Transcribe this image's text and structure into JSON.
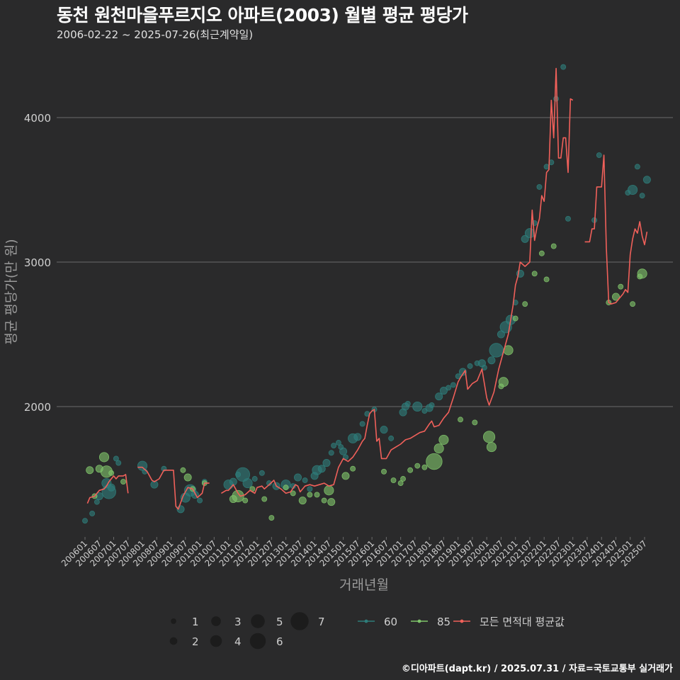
{
  "title": "동천 원천마을푸르지오 아파트(2003) 월별 평균 평당가",
  "subtitle": "2006-02-22 ~ 2025-07-26(최근계약일)",
  "credit": "©디아파트(dapt.kr) / 2025.07.31 / 자료=국토교통부 실거래가",
  "colors": {
    "background": "#2a2a2b",
    "grid": "#6b6b6b",
    "axis_text": "#cfcfcf",
    "axis_title": "#9a9a9a",
    "series_60": "#2e7d7a",
    "series_85": "#7fc46a",
    "avg_line": "#f0605a"
  },
  "chart_data": {
    "type": "scatter",
    "xlabel": "거래년월",
    "ylabel": "평균 평당가(만 원)",
    "ylim": [
      1000,
      4500
    ],
    "yticks": [
      2000,
      3000,
      4000
    ],
    "grid": true,
    "x_tick_labels": [
      "200601",
      "200607",
      "200701",
      "200707",
      "200801",
      "200807",
      "200901",
      "200907",
      "201001",
      "201007",
      "201101",
      "201107",
      "201201",
      "201207",
      "201301",
      "201307",
      "201401",
      "201407",
      "201501",
      "201507",
      "201601",
      "201607",
      "201701",
      "201707",
      "201801",
      "201807",
      "201901",
      "201907",
      "202001",
      "202007",
      "202101",
      "202107",
      "202201",
      "202207",
      "202301",
      "202307",
      "202401",
      "202407",
      "202501",
      "202507"
    ],
    "size_legend": {
      "title": "",
      "items": [
        {
          "label": "1",
          "value": 1
        },
        {
          "label": "2",
          "value": 2
        },
        {
          "label": "3",
          "value": 3
        },
        {
          "label": "4",
          "value": 4
        },
        {
          "label": "5",
          "value": 5
        },
        {
          "label": "6",
          "value": 6
        },
        {
          "label": "7",
          "value": 7
        }
      ]
    },
    "color_legend": [
      {
        "label": "60",
        "key": "series_60"
      },
      {
        "label": "85",
        "key": "series_85"
      },
      {
        "label": "모든 면적대 평균값",
        "key": "avg_line"
      }
    ],
    "avg_line": [
      [
        "2006-02",
        1330
      ],
      [
        "2006-03",
        1370
      ],
      [
        "2006-05",
        1380
      ],
      [
        "2006-07",
        1420
      ],
      [
        "2006-09",
        1430
      ],
      [
        "2006-10",
        1450
      ],
      [
        "2006-11",
        1480
      ],
      [
        "2006-12",
        1500
      ],
      [
        "2007-01",
        1520
      ],
      [
        "2007-02",
        1500
      ],
      [
        "2007-03",
        1520
      ],
      [
        "2007-04",
        1520
      ],
      [
        "2007-05",
        1520
      ],
      [
        "2007-06",
        1530
      ],
      [
        "2007-07",
        1400
      ],
      [
        "2007-11",
        1580
      ],
      [
        "2008-01",
        1580
      ],
      [
        "2008-03",
        1550
      ],
      [
        "2008-05",
        1490
      ],
      [
        "2008-06",
        1480
      ],
      [
        "2008-08",
        1500
      ],
      [
        "2008-10",
        1560
      ],
      [
        "2008-12",
        1560
      ],
      [
        "2009-02",
        1560
      ],
      [
        "2009-03",
        1310
      ],
      [
        "2009-04",
        1290
      ],
      [
        "2009-06",
        1380
      ],
      [
        "2009-08",
        1440
      ],
      [
        "2009-10",
        1430
      ],
      [
        "2009-11",
        1400
      ],
      [
        "2009-12",
        1370
      ],
      [
        "2010-02",
        1400
      ],
      [
        "2010-03",
        1470
      ],
      [
        "2010-05",
        1470
      ],
      [
        "2010-10",
        1400
      ],
      [
        "2010-12",
        1420
      ],
      [
        "2011-01",
        1420
      ],
      [
        "2011-03",
        1460
      ],
      [
        "2011-05",
        1400
      ],
      [
        "2011-06",
        1380
      ],
      [
        "2011-08",
        1390
      ],
      [
        "2011-10",
        1420
      ],
      [
        "2011-12",
        1400
      ],
      [
        "2012-01",
        1440
      ],
      [
        "2012-03",
        1450
      ],
      [
        "2012-04",
        1430
      ],
      [
        "2012-06",
        1460
      ],
      [
        "2012-08",
        1490
      ],
      [
        "2012-09",
        1450
      ],
      [
        "2012-11",
        1430
      ],
      [
        "2013-01",
        1400
      ],
      [
        "2013-03",
        1410
      ],
      [
        "2013-05",
        1460
      ],
      [
        "2013-06",
        1450
      ],
      [
        "2013-07",
        1410
      ],
      [
        "2013-09",
        1450
      ],
      [
        "2013-11",
        1460
      ],
      [
        "2014-01",
        1450
      ],
      [
        "2014-03",
        1460
      ],
      [
        "2014-05",
        1470
      ],
      [
        "2014-07",
        1450
      ],
      [
        "2014-09",
        1460
      ],
      [
        "2014-11",
        1580
      ],
      [
        "2015-01",
        1640
      ],
      [
        "2015-03",
        1620
      ],
      [
        "2015-05",
        1650
      ],
      [
        "2015-07",
        1700
      ],
      [
        "2015-09",
        1760
      ],
      [
        "2015-10",
        1780
      ],
      [
        "2015-11",
        1870
      ],
      [
        "2015-12",
        1950
      ],
      [
        "2016-01",
        1970
      ],
      [
        "2016-02",
        1980
      ],
      [
        "2016-03",
        1760
      ],
      [
        "2016-04",
        1780
      ],
      [
        "2016-05",
        1640
      ],
      [
        "2016-07",
        1640
      ],
      [
        "2016-09",
        1700
      ],
      [
        "2016-11",
        1720
      ],
      [
        "2017-01",
        1740
      ],
      [
        "2017-03",
        1770
      ],
      [
        "2017-05",
        1780
      ],
      [
        "2017-07",
        1800
      ],
      [
        "2017-09",
        1820
      ],
      [
        "2017-11",
        1830
      ],
      [
        "2018-01",
        1880
      ],
      [
        "2018-02",
        1900
      ],
      [
        "2018-03",
        1860
      ],
      [
        "2018-05",
        1870
      ],
      [
        "2018-07",
        1920
      ],
      [
        "2018-09",
        1960
      ],
      [
        "2018-11",
        2060
      ],
      [
        "2019-01",
        2170
      ],
      [
        "2019-02",
        2200
      ],
      [
        "2019-04",
        2250
      ],
      [
        "2019-05",
        2120
      ],
      [
        "2019-07",
        2160
      ],
      [
        "2019-09",
        2180
      ],
      [
        "2019-11",
        2260
      ],
      [
        "2020-01",
        2060
      ],
      [
        "2020-02",
        2010
      ],
      [
        "2020-04",
        2100
      ],
      [
        "2020-06",
        2260
      ],
      [
        "2020-08",
        2380
      ],
      [
        "2020-10",
        2500
      ],
      [
        "2020-12",
        2700
      ],
      [
        "2021-01",
        2840
      ],
      [
        "2021-02",
        2900
      ],
      [
        "2021-03",
        3000
      ],
      [
        "2021-05",
        2970
      ],
      [
        "2021-07",
        3000
      ],
      [
        "2021-08",
        3360
      ],
      [
        "2021-09",
        3150
      ],
      [
        "2021-10",
        3240
      ],
      [
        "2021-11",
        3300
      ],
      [
        "2021-12",
        3460
      ],
      [
        "2022-01",
        3420
      ],
      [
        "2022-02",
        3620
      ],
      [
        "2022-03",
        3640
      ],
      [
        "2022-04",
        4120
      ],
      [
        "2022-05",
        3860
      ],
      [
        "2022-06",
        4340
      ],
      [
        "2022-07",
        3720
      ],
      [
        "2022-08",
        3720
      ],
      [
        "2022-09",
        3860
      ],
      [
        "2022-10",
        3860
      ],
      [
        "2022-11",
        3620
      ],
      [
        "2022-12",
        4130
      ],
      [
        "2023-01",
        4120
      ],
      [
        "2023-06",
        3140
      ],
      [
        "2023-08",
        3140
      ],
      [
        "2023-09",
        3230
      ],
      [
        "2023-10",
        3230
      ],
      [
        "2023-11",
        3520
      ],
      [
        "2023-12",
        3520
      ],
      [
        "2024-01",
        3520
      ],
      [
        "2024-02",
        3740
      ],
      [
        "2024-03",
        3100
      ],
      [
        "2024-04",
        2720
      ],
      [
        "2024-05",
        2710
      ],
      [
        "2024-07",
        2720
      ],
      [
        "2024-09",
        2760
      ],
      [
        "2024-10",
        2780
      ],
      [
        "2024-11",
        2810
      ],
      [
        "2024-12",
        2790
      ],
      [
        "2025-01",
        3050
      ],
      [
        "2025-02",
        3160
      ],
      [
        "2025-03",
        3230
      ],
      [
        "2025-04",
        3200
      ],
      [
        "2025-05",
        3280
      ],
      [
        "2025-06",
        3180
      ],
      [
        "2025-07",
        3120
      ],
      [
        "2025-08",
        3210
      ]
    ],
    "series_60": [
      [
        "2006-01",
        1210,
        1
      ],
      [
        "2006-04",
        1260,
        1
      ],
      [
        "2006-06",
        1340,
        1
      ],
      [
        "2006-07",
        1380,
        2
      ],
      [
        "2006-10",
        1470,
        3
      ],
      [
        "2006-11",
        1410,
        5
      ],
      [
        "2006-12",
        1440,
        2
      ],
      [
        "2007-02",
        1640,
        1
      ],
      [
        "2007-03",
        1610,
        1
      ],
      [
        "2008-01",
        1590,
        3
      ],
      [
        "2008-02",
        1550,
        1
      ],
      [
        "2008-06",
        1460,
        2
      ],
      [
        "2008-10",
        1570,
        1
      ],
      [
        "2009-05",
        1290,
        2
      ],
      [
        "2009-07",
        1370,
        3
      ],
      [
        "2009-09",
        1420,
        4
      ],
      [
        "2009-11",
        1390,
        2
      ],
      [
        "2010-01",
        1350,
        1
      ],
      [
        "2010-03",
        1480,
        1
      ],
      [
        "2011-01",
        1460,
        3
      ],
      [
        "2011-03",
        1480,
        2
      ],
      [
        "2011-05",
        1530,
        1
      ],
      [
        "2011-07",
        1530,
        5
      ],
      [
        "2011-09",
        1470,
        3
      ],
      [
        "2011-12",
        1500,
        1
      ],
      [
        "2012-03",
        1540,
        1
      ],
      [
        "2012-06",
        1470,
        1
      ],
      [
        "2012-09",
        1450,
        2
      ],
      [
        "2013-01",
        1460,
        3
      ],
      [
        "2013-04",
        1450,
        1
      ],
      [
        "2013-06",
        1510,
        2
      ],
      [
        "2013-09",
        1490,
        1
      ],
      [
        "2013-11",
        1430,
        1
      ],
      [
        "2014-01",
        1520,
        2
      ],
      [
        "2014-02",
        1560,
        3
      ],
      [
        "2014-04",
        1570,
        2
      ],
      [
        "2014-06",
        1610,
        2
      ],
      [
        "2014-08",
        1680,
        1
      ],
      [
        "2014-09",
        1730,
        1
      ],
      [
        "2014-11",
        1750,
        1
      ],
      [
        "2014-12",
        1720,
        1
      ],
      [
        "2015-01",
        1690,
        2
      ],
      [
        "2015-02",
        1650,
        1
      ],
      [
        "2015-05",
        1780,
        3
      ],
      [
        "2015-07",
        1790,
        2
      ],
      [
        "2015-09",
        1880,
        1
      ],
      [
        "2015-11",
        1950,
        1
      ],
      [
        "2016-02",
        1980,
        1
      ],
      [
        "2016-06",
        1840,
        2
      ],
      [
        "2016-09",
        1780,
        1
      ],
      [
        "2017-02",
        1960,
        2
      ],
      [
        "2017-03",
        2000,
        2
      ],
      [
        "2017-04",
        2020,
        1
      ],
      [
        "2017-08",
        2000,
        3
      ],
      [
        "2017-11",
        1970,
        1
      ],
      [
        "2018-01",
        1990,
        2
      ],
      [
        "2018-02",
        2010,
        1
      ],
      [
        "2018-05",
        2070,
        2
      ],
      [
        "2018-07",
        2110,
        2
      ],
      [
        "2018-09",
        2130,
        1
      ],
      [
        "2018-11",
        2150,
        1
      ],
      [
        "2019-01",
        2210,
        1
      ],
      [
        "2019-03",
        2240,
        2
      ],
      [
        "2019-06",
        2280,
        1
      ],
      [
        "2019-09",
        2300,
        1
      ],
      [
        "2019-11",
        2300,
        2
      ],
      [
        "2019-12",
        2270,
        1
      ],
      [
        "2020-03",
        2320,
        2
      ],
      [
        "2020-05",
        2390,
        5
      ],
      [
        "2020-07",
        2500,
        2
      ],
      [
        "2020-09",
        2550,
        4
      ],
      [
        "2020-11",
        2600,
        3
      ],
      [
        "2021-01",
        2720,
        1
      ],
      [
        "2021-03",
        2920,
        2
      ],
      [
        "2021-05",
        3160,
        2
      ],
      [
        "2021-07",
        3200,
        3
      ],
      [
        "2021-09",
        3270,
        1
      ],
      [
        "2021-11",
        3520,
        1
      ],
      [
        "2022-02",
        3660,
        1
      ],
      [
        "2022-04",
        3690,
        1
      ],
      [
        "2022-06",
        4130,
        1
      ],
      [
        "2022-09",
        4350,
        1
      ],
      [
        "2022-11",
        3300,
        1
      ],
      [
        "2023-10",
        3290,
        1
      ],
      [
        "2023-12",
        3740,
        1
      ],
      [
        "2024-12",
        3480,
        1
      ],
      [
        "2025-02",
        3500,
        3
      ],
      [
        "2025-04",
        3660,
        1
      ],
      [
        "2025-06",
        3460,
        1
      ],
      [
        "2025-08",
        3570,
        2
      ]
    ],
    "series_85": [
      [
        "2006-03",
        1560,
        2
      ],
      [
        "2006-05",
        1380,
        1
      ],
      [
        "2006-07",
        1570,
        2
      ],
      [
        "2006-09",
        1650,
        3
      ],
      [
        "2006-10",
        1550,
        4
      ],
      [
        "2006-12",
        1540,
        1
      ],
      [
        "2007-05",
        1480,
        1
      ],
      [
        "2009-06",
        1560,
        1
      ],
      [
        "2009-08",
        1510,
        2
      ],
      [
        "2009-10",
        1430,
        1
      ],
      [
        "2010-03",
        1470,
        1
      ],
      [
        "2011-03",
        1360,
        2
      ],
      [
        "2011-05",
        1380,
        4
      ],
      [
        "2011-08",
        1350,
        1
      ],
      [
        "2011-11",
        1430,
        1
      ],
      [
        "2012-04",
        1360,
        1
      ],
      [
        "2012-07",
        1230,
        1
      ],
      [
        "2013-01",
        1440,
        1
      ],
      [
        "2013-04",
        1400,
        1
      ],
      [
        "2013-08",
        1350,
        2
      ],
      [
        "2013-11",
        1390,
        1
      ],
      [
        "2014-02",
        1390,
        1
      ],
      [
        "2014-05",
        1350,
        1
      ],
      [
        "2014-07",
        1420,
        3
      ],
      [
        "2014-08",
        1340,
        2
      ],
      [
        "2015-02",
        1520,
        2
      ],
      [
        "2015-05",
        1570,
        1
      ],
      [
        "2016-06",
        1550,
        1
      ],
      [
        "2016-10",
        1490,
        1
      ],
      [
        "2017-01",
        1470,
        1
      ],
      [
        "2017-02",
        1500,
        1
      ],
      [
        "2017-05",
        1560,
        1
      ],
      [
        "2017-08",
        1590,
        1
      ],
      [
        "2017-11",
        1580,
        1
      ],
      [
        "2018-03",
        1620,
        6
      ],
      [
        "2018-05",
        1710,
        3
      ],
      [
        "2018-07",
        1770,
        3
      ],
      [
        "2019-02",
        1910,
        1
      ],
      [
        "2019-08",
        1890,
        1
      ],
      [
        "2020-02",
        1790,
        4
      ],
      [
        "2020-03",
        1720,
        3
      ],
      [
        "2020-07",
        2140,
        1
      ],
      [
        "2020-08",
        2170,
        3
      ],
      [
        "2020-10",
        2390,
        3
      ],
      [
        "2021-01",
        2610,
        1
      ],
      [
        "2021-05",
        2710,
        1
      ],
      [
        "2021-09",
        2920,
        1
      ],
      [
        "2021-12",
        3060,
        1
      ],
      [
        "2022-02",
        2880,
        1
      ],
      [
        "2022-05",
        3110,
        1
      ],
      [
        "2024-04",
        2720,
        1
      ],
      [
        "2024-07",
        2760,
        2
      ],
      [
        "2024-09",
        2830,
        1
      ],
      [
        "2025-02",
        2710,
        1
      ],
      [
        "2025-05",
        2900,
        1
      ],
      [
        "2025-06",
        2920,
        3
      ]
    ]
  }
}
